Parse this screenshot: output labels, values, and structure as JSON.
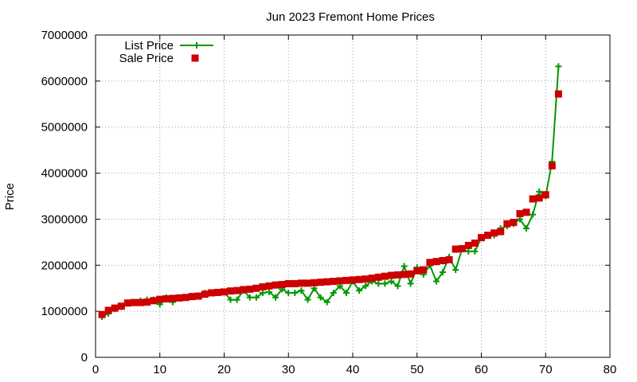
{
  "chart_data": {
    "type": "line",
    "title": "Jun 2023 Fremont Home Prices",
    "xlabel": "",
    "ylabel": "Price",
    "xlim": [
      0,
      80
    ],
    "ylim": [
      0,
      7000000
    ],
    "xticks": [
      0,
      10,
      20,
      30,
      40,
      50,
      60,
      70,
      80
    ],
    "yticks": [
      0,
      1000000,
      2000000,
      3000000,
      4000000,
      5000000,
      6000000,
      7000000
    ],
    "grid": true,
    "legend": "top-left",
    "series": [
      {
        "name": "List Price",
        "style": "line-plus",
        "color": "#009900",
        "x": [
          1,
          2,
          3,
          4,
          5,
          6,
          7,
          8,
          9,
          10,
          11,
          12,
          13,
          14,
          15,
          16,
          17,
          18,
          19,
          20,
          21,
          22,
          23,
          24,
          25,
          26,
          27,
          28,
          29,
          30,
          31,
          32,
          33,
          34,
          35,
          36,
          37,
          38,
          39,
          40,
          41,
          42,
          43,
          44,
          45,
          46,
          47,
          48,
          49,
          50,
          51,
          52,
          53,
          54,
          55,
          56,
          57,
          58,
          59,
          60,
          61,
          62,
          63,
          64,
          65,
          66,
          67,
          68,
          69,
          70,
          71,
          72
        ],
        "y": [
          880000,
          950000,
          1050000,
          1100000,
          1180000,
          1200000,
          1230000,
          1250000,
          1250000,
          1150000,
          1300000,
          1200000,
          1300000,
          1300000,
          1330000,
          1330000,
          1400000,
          1400000,
          1400000,
          1420000,
          1250000,
          1250000,
          1450000,
          1300000,
          1300000,
          1400000,
          1420000,
          1300000,
          1480000,
          1400000,
          1400000,
          1450000,
          1250000,
          1500000,
          1300000,
          1200000,
          1400000,
          1550000,
          1400000,
          1650000,
          1450000,
          1550000,
          1650000,
          1600000,
          1600000,
          1650000,
          1550000,
          1980000,
          1600000,
          1950000,
          1800000,
          2000000,
          1650000,
          1850000,
          2180000,
          1900000,
          2350000,
          2300000,
          2300000,
          2600000,
          2650000,
          2650000,
          2800000,
          2850000,
          2900000,
          3000000,
          2800000,
          3100000,
          3600000,
          3500000,
          4250000,
          6320000
        ]
      },
      {
        "name": "Sale Price",
        "style": "square",
        "color": "#cc0000",
        "x": [
          1,
          2,
          3,
          4,
          5,
          6,
          7,
          8,
          9,
          10,
          11,
          12,
          13,
          14,
          15,
          16,
          17,
          18,
          19,
          20,
          21,
          22,
          23,
          24,
          25,
          26,
          27,
          28,
          29,
          30,
          31,
          32,
          33,
          34,
          35,
          36,
          37,
          38,
          39,
          40,
          41,
          42,
          43,
          44,
          45,
          46,
          47,
          48,
          49,
          50,
          51,
          52,
          53,
          54,
          55,
          56,
          57,
          58,
          59,
          60,
          61,
          62,
          63,
          64,
          65,
          66,
          67,
          68,
          69,
          70,
          71,
          72
        ],
        "y": [
          930000,
          1020000,
          1070000,
          1110000,
          1180000,
          1190000,
          1190000,
          1200000,
          1230000,
          1260000,
          1270000,
          1280000,
          1290000,
          1300000,
          1320000,
          1330000,
          1370000,
          1400000,
          1410000,
          1420000,
          1440000,
          1450000,
          1470000,
          1480000,
          1500000,
          1530000,
          1550000,
          1570000,
          1580000,
          1600000,
          1600000,
          1610000,
          1610000,
          1620000,
          1630000,
          1640000,
          1650000,
          1660000,
          1670000,
          1680000,
          1690000,
          1700000,
          1720000,
          1740000,
          1760000,
          1780000,
          1790000,
          1800000,
          1810000,
          1880000,
          1900000,
          2060000,
          2080000,
          2100000,
          2120000,
          2350000,
          2360000,
          2430000,
          2480000,
          2600000,
          2650000,
          2700000,
          2730000,
          2900000,
          2930000,
          3120000,
          3150000,
          3440000,
          3460000,
          3530000,
          4160000,
          5720000
        ]
      }
    ]
  }
}
